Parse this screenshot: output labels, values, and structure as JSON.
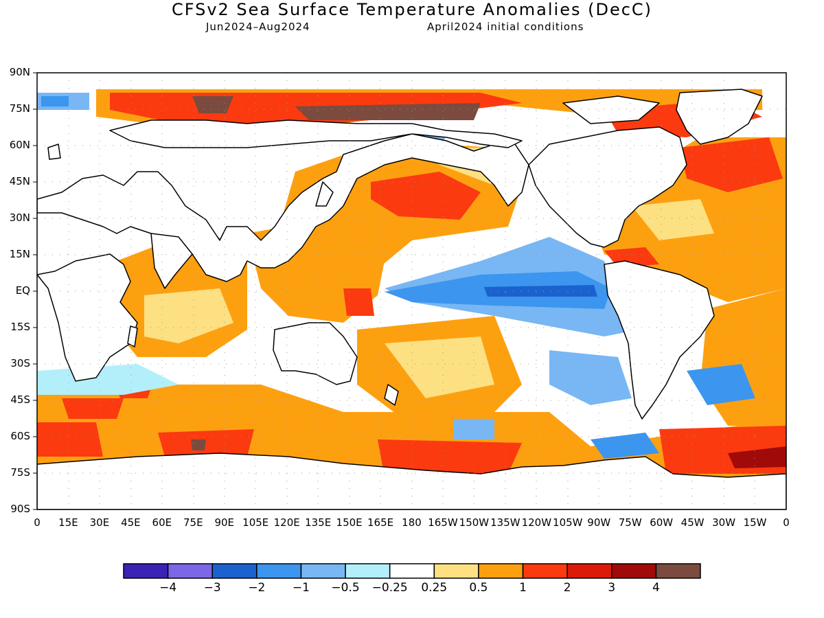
{
  "title": "CFSv2 Sea Surface Temperature Anomalies (DecC)",
  "subtitle_left": "Jun2024–Aug2024",
  "subtitle_right": "April2024 initial conditions",
  "lat_labels": [
    "90N",
    "75N",
    "60N",
    "45N",
    "30N",
    "15N",
    "EQ",
    "15S",
    "30S",
    "45S",
    "60S",
    "75S",
    "90S"
  ],
  "lon_labels": [
    "0",
    "15E",
    "30E",
    "45E",
    "60E",
    "75E",
    "90E",
    "105E",
    "120E",
    "135E",
    "150E",
    "165E",
    "180",
    "165W",
    "150W",
    "135W",
    "120W",
    "105W",
    "90W",
    "75W",
    "60W",
    "45W",
    "30W",
    "15W",
    "0"
  ],
  "colorbar": {
    "colors": [
      "#3a23b5",
      "#7b67e8",
      "#1b62cf",
      "#3c95ee",
      "#78b7f4",
      "#b3effa",
      "#ffffff",
      "#fde082",
      "#fda010",
      "#fb3a10",
      "#dc1a08",
      "#a00a08",
      "#7a4b3e"
    ],
    "labels": [
      "−4",
      "−3",
      "−2",
      "−1",
      "−0.5",
      "−0.25",
      "0.25",
      "0.5",
      "1",
      "2",
      "3",
      "4"
    ]
  },
  "colors": {
    "land_outline": "#000000",
    "ocean_neutral": "#ffffff",
    "grid_dots": "#999999"
  }
}
